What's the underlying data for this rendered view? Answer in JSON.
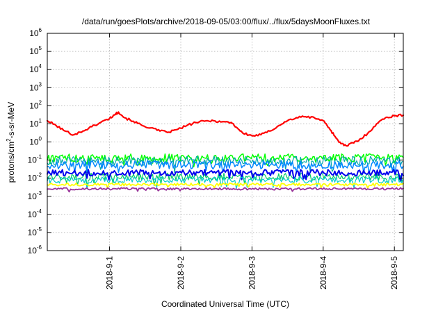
{
  "chart_data": {
    "type": "line",
    "title": "/data/run/goesPlots/archive/2018-09-05/03:00/flux/../flux/5daysMoonFluxes.txt",
    "xlabel": "Coordinated Universal Time (UTC)",
    "ylabel": "protons/cm²-s-sr-MeV",
    "ylabel_parts": {
      "pre": "protons/cm",
      "sup": "2",
      "post": "-s-sr-MeV"
    },
    "yscale": "log",
    "ylim_exponent": [
      -6,
      6
    ],
    "y_ticks": [
      {
        "base": "10",
        "exp": "-6"
      },
      {
        "base": "10",
        "exp": "-5"
      },
      {
        "base": "10",
        "exp": "-4"
      },
      {
        "base": "10",
        "exp": "-3"
      },
      {
        "base": "10",
        "exp": "-2"
      },
      {
        "base": "10",
        "exp": "-1"
      },
      {
        "base": "10",
        "exp": "0"
      },
      {
        "base": "10",
        "exp": "1"
      },
      {
        "base": "10",
        "exp": "2"
      },
      {
        "base": "10",
        "exp": "3"
      },
      {
        "base": "10",
        "exp": "4"
      },
      {
        "base": "10",
        "exp": "5"
      },
      {
        "base": "10",
        "exp": "6"
      }
    ],
    "x_range": [
      "2018-08-31T03:00",
      "2018-09-05T03:00"
    ],
    "x_ticks": [
      {
        "t": "2018-09-01T00:00",
        "label": "2018-9-1"
      },
      {
        "t": "2018-09-02T00:00",
        "label": "2018-9-2"
      },
      {
        "t": "2018-09-03T00:00",
        "label": "2018-9-3"
      },
      {
        "t": "2018-09-04T00:00",
        "label": "2018-9-4"
      },
      {
        "t": "2018-09-05T00:00",
        "label": "2018-9-5"
      }
    ],
    "grid": true,
    "legend": "none",
    "series": [
      {
        "color": "#ff0000",
        "width": 2.2,
        "points": [
          [
            "2018-08-31T03:00",
            15
          ],
          [
            "2018-08-31T06:00",
            8
          ],
          [
            "2018-08-31T09:00",
            4
          ],
          [
            "2018-08-31T12:00",
            2.5
          ],
          [
            "2018-08-31T15:00",
            4
          ],
          [
            "2018-08-31T18:00",
            7
          ],
          [
            "2018-08-31T21:00",
            12
          ],
          [
            "2018-09-01T00:00",
            20
          ],
          [
            "2018-09-01T02:00",
            35
          ],
          [
            "2018-09-01T03:00",
            45
          ],
          [
            "2018-09-01T05:00",
            22
          ],
          [
            "2018-09-01T08:00",
            14
          ],
          [
            "2018-09-01T11:00",
            8
          ],
          [
            "2018-09-01T14:00",
            6
          ],
          [
            "2018-09-01T17:00",
            4
          ],
          [
            "2018-09-01T20:00",
            3.5
          ],
          [
            "2018-09-01T23:00",
            5
          ],
          [
            "2018-09-02T02:00",
            8
          ],
          [
            "2018-09-02T05:00",
            12
          ],
          [
            "2018-09-02T08:00",
            14
          ],
          [
            "2018-09-02T11:00",
            15
          ],
          [
            "2018-09-02T14:00",
            13
          ],
          [
            "2018-09-02T17:00",
            12
          ],
          [
            "2018-09-02T19:00",
            6
          ],
          [
            "2018-09-02T21:00",
            3
          ],
          [
            "2018-09-03T00:00",
            2.2
          ],
          [
            "2018-09-03T03:00",
            2.5
          ],
          [
            "2018-09-03T06:00",
            4
          ],
          [
            "2018-09-03T09:00",
            8
          ],
          [
            "2018-09-03T12:00",
            15
          ],
          [
            "2018-09-03T15:00",
            22
          ],
          [
            "2018-09-03T18:00",
            25
          ],
          [
            "2018-09-03T21:00",
            22
          ],
          [
            "2018-09-04T00:00",
            15
          ],
          [
            "2018-09-04T02:00",
            6
          ],
          [
            "2018-09-04T04:00",
            2
          ],
          [
            "2018-09-04T06:00",
            0.8
          ],
          [
            "2018-09-04T08:00",
            0.6
          ],
          [
            "2018-09-04T10:00",
            0.9
          ],
          [
            "2018-09-04T12:00",
            1.2
          ],
          [
            "2018-09-04T15:00",
            3
          ],
          [
            "2018-09-04T18:00",
            10
          ],
          [
            "2018-09-04T21:00",
            22
          ],
          [
            "2018-09-05T00:00",
            28
          ],
          [
            "2018-09-05T03:00",
            30
          ]
        ]
      },
      {
        "color": "#00ff00",
        "width": 1.5,
        "base": 0.13,
        "spread": 0.45
      },
      {
        "color": "#00aaaa",
        "width": 1.2,
        "base": 0.09,
        "spread": 0.5
      },
      {
        "color": "#0088ff",
        "width": 1.5,
        "base": 0.055,
        "spread": 0.45
      },
      {
        "color": "#00cc66",
        "width": 1.2,
        "base": 0.012,
        "spread": 0.4
      },
      {
        "color": "#0000ee",
        "width": 2,
        "base": 0.02,
        "spread": 0.35
      },
      {
        "color": "#00cccc",
        "width": 1.2,
        "base": 0.008,
        "spread": 0.35
      },
      {
        "color": "#ffff00",
        "width": 1.8,
        "base": 0.0045,
        "spread": 0.15
      },
      {
        "color": "#993399",
        "width": 1.8,
        "base": 0.0026,
        "spread": 0.12
      }
    ]
  }
}
